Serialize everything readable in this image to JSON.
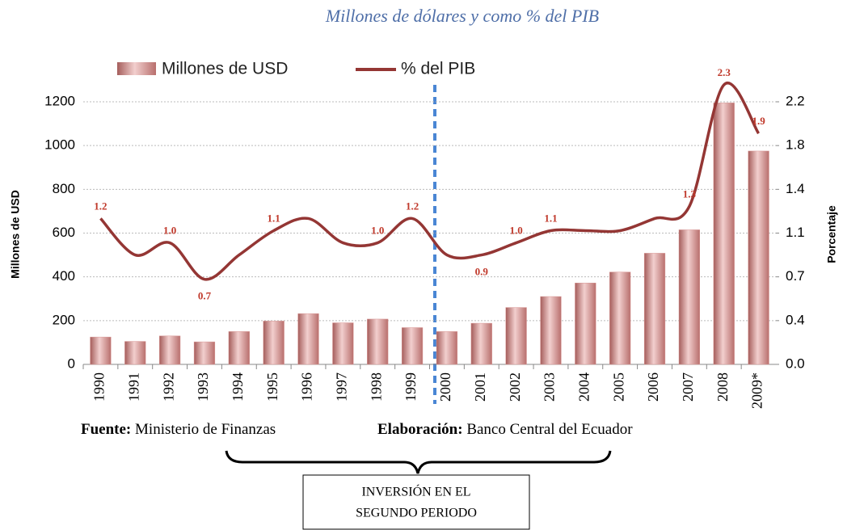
{
  "chart_data": {
    "type": "bar_line",
    "title": "Millones de dólares y como % del PIB",
    "y_label": "Millones de USD",
    "y2_label": "Porcentaje",
    "categories": [
      "1990",
      "1991",
      "1992",
      "1993",
      "1994",
      "1995",
      "1996",
      "1997",
      "1998",
      "1999",
      "2000",
      "2001",
      "2002",
      "2003",
      "2004",
      "2005",
      "2006",
      "2007",
      "2008",
      "2009*"
    ],
    "series": [
      {
        "name": "Millones de USD",
        "type": "bar",
        "color": "#d99694",
        "values": [
          125,
          105,
          130,
          103,
          150,
          198,
          232,
          190,
          207,
          168,
          150,
          188,
          260,
          310,
          372,
          422,
          508,
          615,
          1195,
          975
        ]
      },
      {
        "name": "% del PIB",
        "type": "line",
        "axis": "y2",
        "color": "#943634",
        "values": [
          1.2,
          0.9,
          1.0,
          0.7,
          0.9,
          1.1,
          1.2,
          1.0,
          1.0,
          1.2,
          0.9,
          0.9,
          1.0,
          1.1,
          1.1,
          1.1,
          1.2,
          1.3,
          2.3,
          1.9
        ],
        "value_labels": [
          "1.2",
          null,
          "1.0",
          "0.7",
          null,
          "1.1",
          null,
          null,
          "1.0",
          "1.2",
          null,
          "0.9",
          "1.0",
          "1.1",
          null,
          null,
          null,
          "1.3",
          "2.3",
          "1.9"
        ]
      }
    ],
    "ylim": [
      0,
      1200
    ],
    "yticks": [
      0,
      200,
      400,
      600,
      800,
      1000,
      1200
    ],
    "y2lim": [
      0,
      2.16
    ],
    "y2ticks": [
      {
        "value": 0,
        "label": "0.0"
      },
      {
        "value": 0.36,
        "label": "0.4"
      },
      {
        "value": 0.72,
        "label": "0.7"
      },
      {
        "value": 1.08,
        "label": "1.1"
      },
      {
        "value": 1.44,
        "label": "1.4"
      },
      {
        "value": 1.8,
        "label": "1.8"
      },
      {
        "value": 2.16,
        "label": "2.2"
      }
    ],
    "grid": true,
    "legend": "top",
    "source_label": "Fuente:",
    "source": "Ministerio de Finanzas",
    "credit_label": "Elaboración:",
    "credit": "Banco Central del Ecuador",
    "annotation": [
      "INVERSIÓN  EN EL",
      "SEGUNDO PERIODO"
    ]
  }
}
